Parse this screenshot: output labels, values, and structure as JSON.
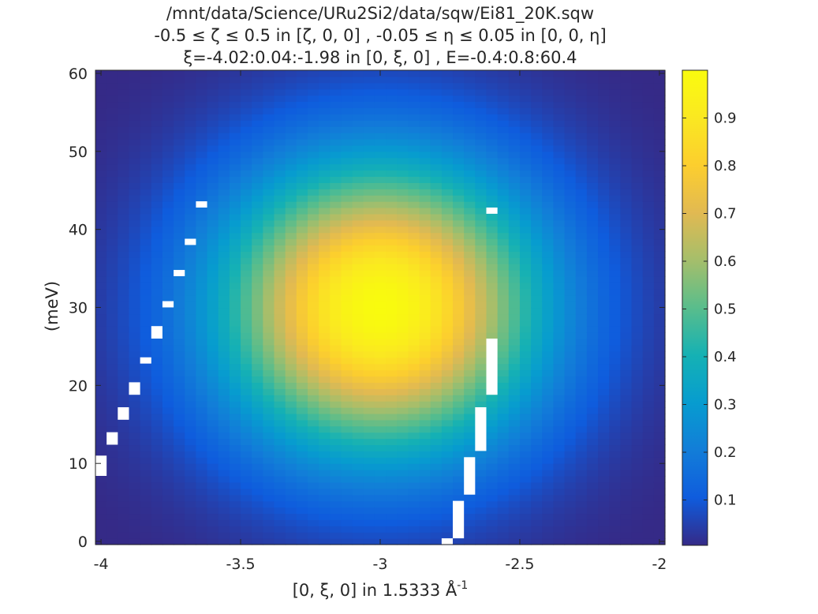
{
  "chart_data": {
    "type": "heatmap",
    "title": [
      "/mnt/data/Science/URu2Si2/data/sqw/Ei81_20K.sqw",
      "-0.5 ≤ ζ ≤ 0.5 in [ζ, 0, 0] , -0.05 ≤ η ≤ 0.05 in [0, 0, η]",
      "ξ=-4.02:0.04:-1.98 in [0, ξ, 0] , E=-0.4:0.8:60.4"
    ],
    "xlabel": "[0, ξ, 0] in 1.5333 Å",
    "xlabel_superscript": "-1",
    "ylabel": "(meV)",
    "xlim": [
      -4.02,
      -1.98
    ],
    "ylim": [
      -0.4,
      60.4
    ],
    "x_bin_width": 0.04,
    "y_bin_width": 0.8,
    "x_ticks": [
      -4,
      -3.5,
      -3,
      -2.5,
      -2
    ],
    "x_tick_labels": [
      "-4",
      "-3.5",
      "-3",
      "-2.5",
      "-2"
    ],
    "y_ticks": [
      0,
      10,
      20,
      30,
      40,
      50,
      60
    ],
    "y_tick_labels": [
      "0",
      "10",
      "20",
      "30",
      "40",
      "50",
      "60"
    ],
    "colorbar": {
      "colormap": "parula",
      "range": [
        0.005,
        1.0
      ],
      "ticks": [
        0.1,
        0.2,
        0.3,
        0.4,
        0.5,
        0.6,
        0.7,
        0.8,
        0.9
      ],
      "tick_labels": [
        "0.1",
        "0.2",
        "0.3",
        "0.4",
        "0.5",
        "0.6",
        "0.7",
        "0.8",
        "0.9"
      ]
    },
    "intensity_model": {
      "shape": "2D gaussian",
      "peak": 1.0,
      "center_x": -3.0,
      "center_y": 30.0,
      "sigma_x": 0.4,
      "sigma_y": 13.0
    },
    "missing_data_bins": [
      {
        "x": [
          -4.02,
          -3.98
        ],
        "y": [
          8.4,
          11.0
        ]
      },
      {
        "x": [
          -3.98,
          -3.94
        ],
        "y": [
          12.4,
          14.0
        ]
      },
      {
        "x": [
          -3.94,
          -3.9
        ],
        "y": [
          15.6,
          17.2
        ]
      },
      {
        "x": [
          -3.9,
          -3.86
        ],
        "y": [
          18.8,
          20.4
        ]
      },
      {
        "x": [
          -3.86,
          -3.82
        ],
        "y": [
          22.8,
          23.6
        ]
      },
      {
        "x": [
          -3.82,
          -3.78
        ],
        "y": [
          26.0,
          27.6
        ]
      },
      {
        "x": [
          -3.78,
          -3.74
        ],
        "y": [
          30.0,
          30.8
        ]
      },
      {
        "x": [
          -3.74,
          -3.7
        ],
        "y": [
          34.0,
          34.8
        ]
      },
      {
        "x": [
          -3.7,
          -3.66
        ],
        "y": [
          38.0,
          38.8
        ]
      },
      {
        "x": [
          -3.66,
          -3.62
        ],
        "y": [
          42.8,
          43.6
        ]
      },
      {
        "x": [
          -2.78,
          -2.74
        ],
        "y": [
          -0.4,
          0.4
        ]
      },
      {
        "x": [
          -2.74,
          -2.7
        ],
        "y": [
          0.4,
          5.2
        ]
      },
      {
        "x": [
          -2.7,
          -2.66
        ],
        "y": [
          6.0,
          10.8
        ]
      },
      {
        "x": [
          -2.66,
          -2.62
        ],
        "y": [
          11.6,
          17.2
        ]
      },
      {
        "x": [
          -2.62,
          -2.58
        ],
        "y": [
          18.8,
          26.0
        ]
      },
      {
        "x": [
          -2.62,
          -2.58
        ],
        "y": [
          42.0,
          42.8
        ]
      }
    ]
  }
}
